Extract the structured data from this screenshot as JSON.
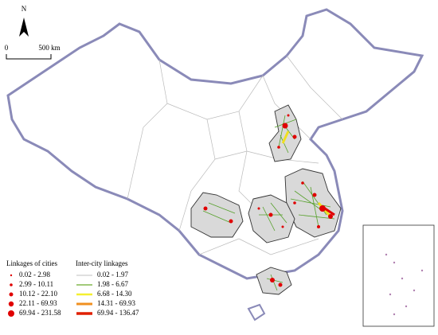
{
  "north_label": "N",
  "scale_bar": {
    "start_label": "0",
    "end_label": "500 km"
  },
  "legend": {
    "cities": {
      "title": "Linkages of cities",
      "items": [
        "0.02 - 2.98",
        "2.99 - 10.11",
        "10.12 - 22.10",
        "22.11 - 69.93",
        "69.94 - 231.58"
      ]
    },
    "linkages": {
      "title": "Inter-city linkages",
      "items": [
        "0.02 - 1.97",
        "1.98 - 6.67",
        "6.68 - 14.30",
        "14.31 - 69.93",
        "69.94 - 136.47"
      ]
    }
  }
}
